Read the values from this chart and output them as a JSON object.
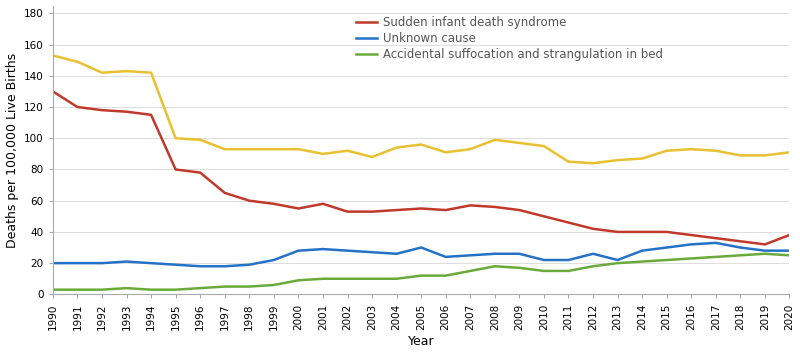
{
  "years": [
    1990,
    1991,
    1992,
    1993,
    1994,
    1995,
    1996,
    1997,
    1998,
    1999,
    2000,
    2001,
    2002,
    2003,
    2004,
    2005,
    2006,
    2007,
    2008,
    2009,
    2010,
    2011,
    2012,
    2013,
    2014,
    2015,
    2016,
    2017,
    2018,
    2019,
    2020
  ],
  "sids": [
    130,
    120,
    118,
    117,
    115,
    80,
    78,
    65,
    60,
    58,
    55,
    58,
    53,
    53,
    54,
    55,
    54,
    57,
    56,
    54,
    50,
    46,
    42,
    40,
    40,
    40,
    38,
    36,
    34,
    32,
    38
  ],
  "unknown": [
    20,
    20,
    20,
    21,
    20,
    19,
    18,
    18,
    19,
    22,
    28,
    29,
    28,
    27,
    26,
    30,
    24,
    25,
    26,
    26,
    22,
    22,
    26,
    22,
    28,
    30,
    32,
    33,
    30,
    28,
    28
  ],
  "accidental": [
    3,
    3,
    3,
    4,
    3,
    3,
    4,
    5,
    5,
    6,
    9,
    10,
    10,
    10,
    10,
    12,
    12,
    15,
    18,
    17,
    15,
    15,
    18,
    20,
    21,
    22,
    23,
    24,
    25,
    26,
    25
  ],
  "mystery": [
    153,
    149,
    142,
    143,
    142,
    100,
    99,
    93,
    93,
    93,
    93,
    90,
    92,
    88,
    94,
    96,
    91,
    93,
    99,
    97,
    95,
    85,
    84,
    86,
    87,
    92,
    93,
    92,
    89,
    89,
    91
  ],
  "sids_color": "#c0392b",
  "unknown_color": "#2472c8",
  "accidental_color": "#6aaa3a",
  "mystery_color": "#e8c030",
  "legend_labels": [
    "Sudden infant death syndrome",
    "Unknown cause",
    "Accidental suffocation and strangulation in bed"
  ],
  "ylabel": "Deaths per 100,000 Live Births",
  "xlabel": "Year",
  "ylim": [
    0,
    185
  ],
  "yticks": [
    0,
    20,
    40,
    60,
    80,
    100,
    120,
    140,
    160,
    180
  ],
  "legend_fontsize": 8.5,
  "axis_fontsize": 9,
  "tick_fontsize": 7.5,
  "linewidth": 1.8,
  "bg_color": "#ffffff"
}
